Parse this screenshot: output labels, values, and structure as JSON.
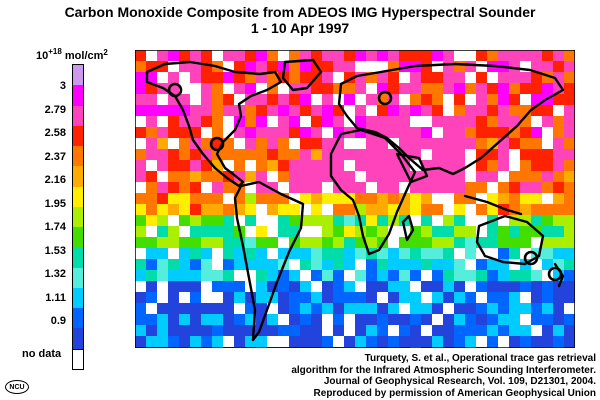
{
  "title_line1": "Carbon Monoxide Composite from ADEOS IMG Hyperspectral Sounder",
  "title_line2": "1 - 10 Apr 1997",
  "units": {
    "base": "10",
    "exponent": "+18",
    "unit": "mol/cm",
    "unit_exponent": "2"
  },
  "legend": {
    "labels": [
      "3",
      "2.79",
      "2.58",
      "2.37",
      "2.16",
      "1.95",
      "1.74",
      "1.53",
      "1.32",
      "1.11",
      "0.9"
    ],
    "no_data_label": "no data",
    "colors_top_to_bottom": [
      "#cc99ee",
      "#ff00ff",
      "#ff44bb",
      "#ff2200",
      "#ff7700",
      "#ffaa00",
      "#ffee00",
      "#aaee00",
      "#44dd00",
      "#00ddaa",
      "#55eedd",
      "#00ccff",
      "#0066ff",
      "#2244dd"
    ],
    "no_data_color": "#ffffff"
  },
  "credit": [
    "Turquety, S. et al., Operational trace gas retrieval",
    "algorithm for the Infrared Atmospheric Sounding Interferometer.",
    "Journal of Geophysical Research, Vol. 109, D21301, 2004.",
    "Reproduced by permission of American Geophysical Union"
  ],
  "logo_text": "NCU"
}
